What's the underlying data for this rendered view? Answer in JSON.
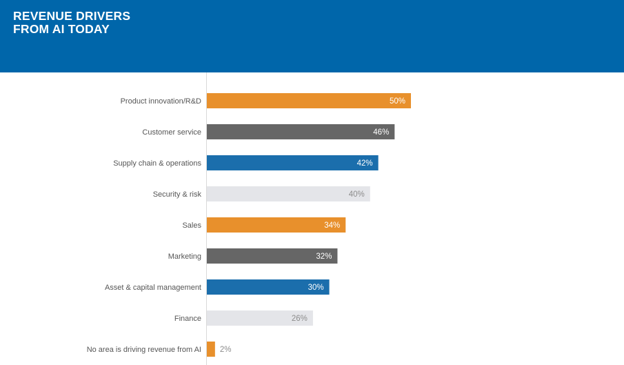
{
  "header": {
    "title_line1": "REVENUE DRIVERS",
    "title_line2": "FROM AI TODAY",
    "background_color": "#0066aa"
  },
  "chart_data": {
    "type": "bar",
    "orientation": "horizontal",
    "title": "REVENUE DRIVERS FROM AI TODAY",
    "xlabel": "",
    "ylabel": "",
    "xlim": [
      0,
      50
    ],
    "grid": false,
    "legend": "none",
    "categories": [
      "Product innovation/R&D",
      "Customer service",
      "Supply chain & operations",
      "Security & risk",
      "Sales",
      "Marketing",
      "Asset & capital management",
      "Finance",
      "No area is driving revenue from AI"
    ],
    "values": [
      50,
      46,
      42,
      40,
      34,
      32,
      30,
      26,
      2
    ],
    "value_labels": [
      "50%",
      "46%",
      "42%",
      "40%",
      "34%",
      "32%",
      "30%",
      "26%",
      "2%"
    ],
    "bar_colors": [
      "#e8902c",
      "#666666",
      "#1b6eac",
      "#e4e5e9",
      "#e8902c",
      "#666666",
      "#1b6eac",
      "#e4e5e9",
      "#e8902c"
    ],
    "label_colors": [
      "#ffffff",
      "#ffffff",
      "#ffffff",
      "#8c8c8c",
      "#ffffff",
      "#ffffff",
      "#ffffff",
      "#8c8c8c",
      "#8c8c8c"
    ]
  }
}
